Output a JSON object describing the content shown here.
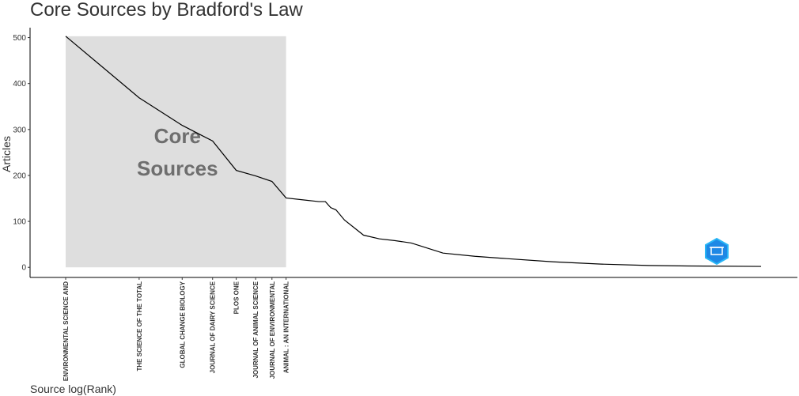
{
  "chart_data": {
    "type": "line",
    "title": "Core Sources by Bradford's Law",
    "x_label": "Source log(Rank)",
    "y_label": "Articles",
    "annotation": [
      "Core",
      "Sources"
    ],
    "core_region": {
      "x": [
        0,
        2.079
      ],
      "y": [
        0,
        503
      ],
      "color": "#dedede"
    },
    "x": [
      0,
      0.693,
      1.099,
      1.386,
      1.609,
      1.792,
      1.946,
      2.079,
      2.388,
      2.45,
      2.5,
      2.55,
      2.63,
      2.81,
      2.96,
      3.11,
      3.26,
      3.56,
      3.86,
      4.16,
      4.6,
      5.05,
      5.5,
      5.87,
      6.56
    ],
    "series": [
      {
        "name": "Articles",
        "color": "#000000",
        "values": [
          503,
          369,
          309,
          275,
          211,
          199,
          187,
          151,
          143,
          143,
          130,
          125,
          103,
          70,
          62,
          58,
          53,
          31,
          24,
          19,
          12,
          7,
          4,
          3,
          2
        ]
      }
    ],
    "xlim": [
      -0.336,
      6.903
    ],
    "ylim": [
      -22,
      513
    ],
    "yticks": [
      0,
      100,
      200,
      300,
      400,
      500
    ],
    "xticks": [
      {
        "value": 0,
        "label": "ENVIRONMENTAL SCIENCE AND"
      },
      {
        "value": 0.693,
        "label": "THE SCIENCE OF THE TOTAL"
      },
      {
        "value": 1.099,
        "label": "GLOBAL CHANGE BIOLOGY"
      },
      {
        "value": 1.386,
        "label": "JOURNAL OF DAIRY SCIENCE"
      },
      {
        "value": 1.609,
        "label": "PLOS ONE"
      },
      {
        "value": 1.792,
        "label": "JOURNAL OF ANIMAL SCIENCE"
      },
      {
        "value": 1.946,
        "label": "JOURNAL OF ENVIRONMENTAL"
      },
      {
        "value": 2.079,
        "label": "ANIMAL : AN INTERNATIONAL"
      }
    ],
    "grid": false
  }
}
